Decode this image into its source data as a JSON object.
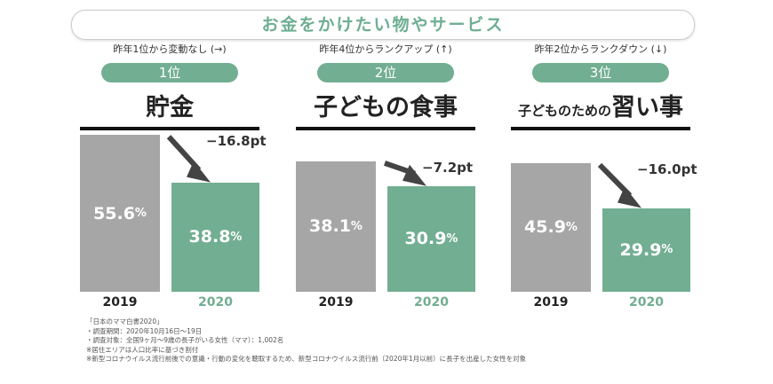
{
  "title": "お金をかけたい物やサービス",
  "colors": {
    "accent": "#72ae92",
    "gray": "#a6a6a6"
  },
  "chart_data": {
    "type": "bar",
    "panels": [
      {
        "note": "昨年1位から変動なし (→)",
        "rank": "1位",
        "item": "貯金",
        "item_prefix": "",
        "categories": [
          "2019",
          "2020"
        ],
        "values": [
          55.6,
          38.8
        ],
        "value_labels": [
          "55.6",
          "38.8"
        ],
        "delta": "−16.8pt"
      },
      {
        "note": "昨年4位からランクアップ (↑)",
        "rank": "2位",
        "item": "子どもの食事",
        "item_prefix": "",
        "categories": [
          "2019",
          "2020"
        ],
        "values": [
          38.1,
          30.9
        ],
        "value_labels": [
          "38.1",
          "30.9"
        ],
        "delta": "−7.2pt"
      },
      {
        "note": "昨年2位からランクダウン (↓)",
        "rank": "3位",
        "item": "習い事",
        "item_prefix": "子どものための",
        "categories": [
          "2019",
          "2020"
        ],
        "values": [
          45.9,
          29.9
        ],
        "value_labels": [
          "45.9",
          "29.9"
        ],
        "delta": "−16.0pt"
      }
    ],
    "unit": "%"
  },
  "notes": [
    "「日本のママ白書2020」",
    "・調査期間：2020年10月16日〜19日",
    "・調査対象：全国9ヶ月〜9歳の長子がいる女性（ママ）：1,002名",
    "※居住エリアは人口比率に基づき割付",
    "※新型コロナウイルス流行前後での意識・行動の変化を聴取するため、新型コロナウイルス流行前（2020年1月以前）に長子を出産した女性を対象"
  ]
}
